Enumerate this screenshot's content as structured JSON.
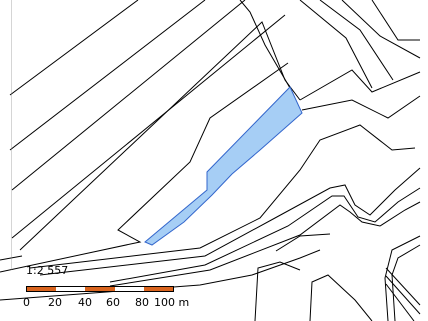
{
  "map": {
    "parcel_highlight_color": "#a6cef5",
    "parcel_outline_color": "#3366cc",
    "line_color": "#000000"
  },
  "scale": {
    "ratio_label": "1:2 557",
    "tick_labels": [
      "0",
      "20",
      "40",
      "60",
      "80",
      "100 m"
    ],
    "segment_colors": [
      "#d9641e",
      "#ffffff",
      "#d9641e",
      "#ffffff",
      "#d9641e"
    ]
  }
}
